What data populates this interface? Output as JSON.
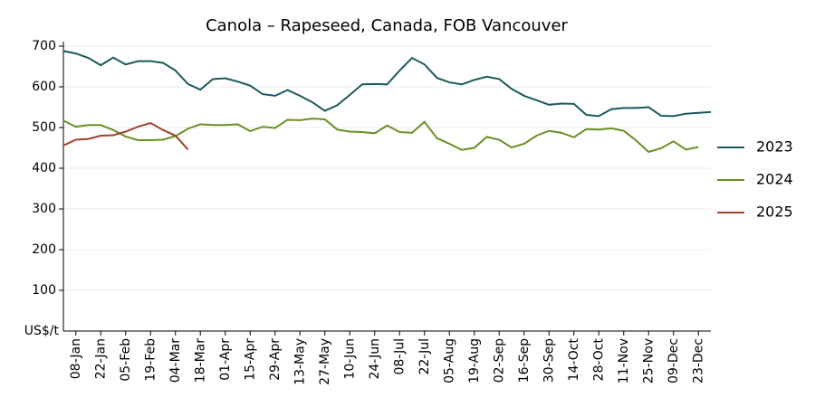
{
  "chart_data": {
    "type": "line",
    "title": "Canola – Rapeseed, Canada, FOB Vancouver",
    "ylabel": "US$/t",
    "categories": [
      null,
      "08-Jan",
      null,
      "22-Jan",
      null,
      "05-Feb",
      null,
      "19-Feb",
      null,
      "04-Mar",
      null,
      "18-Mar",
      null,
      "01-Apr",
      null,
      "15-Apr",
      null,
      "29-Apr",
      null,
      "13-May",
      null,
      "27-May",
      null,
      "10-Jun",
      null,
      "24-Jun",
      null,
      "08-Jul",
      null,
      "22-Jul",
      null,
      "05-Aug",
      null,
      "19-Aug",
      null,
      "02-Sep",
      null,
      "16-Sep",
      null,
      "30-Sep",
      null,
      "14-Oct",
      null,
      "28-Oct",
      null,
      "11-Nov",
      null,
      "25-Nov",
      null,
      "09-Dec",
      null,
      "23-Dec",
      null
    ],
    "series": [
      {
        "name": "2023",
        "color": "#1b5a5e",
        "values": [
          688,
          682,
          671,
          653,
          672,
          655,
          663,
          663,
          659,
          640,
          607,
          593,
          619,
          621,
          613,
          603,
          582,
          578,
          592,
          578,
          562,
          541,
          555,
          580,
          606,
          607,
          606,
          640,
          671,
          655,
          622,
          611,
          606,
          617,
          625,
          619,
          595,
          578,
          567,
          556,
          559,
          558,
          531,
          528,
          545,
          548,
          548,
          550,
          529,
          528,
          534,
          536,
          538
        ]
      },
      {
        "name": "2024",
        "color": "#6b8e23",
        "values": [
          517,
          502,
          506,
          506,
          494,
          478,
          469,
          469,
          470,
          479,
          497,
          508,
          506,
          506,
          508,
          491,
          502,
          499,
          519,
          518,
          522,
          520,
          495,
          490,
          489,
          486,
          505,
          489,
          487,
          514,
          474,
          460,
          445,
          450,
          477,
          470,
          451,
          460,
          480,
          492,
          487,
          476,
          496,
          495,
          498,
          492,
          468,
          440,
          449,
          466,
          446,
          452,
          null
        ]
      },
      {
        "name": "2025",
        "color": "#a0412d",
        "values": [
          456,
          470,
          472,
          480,
          481,
          490,
          502,
          511,
          494,
          480,
          446,
          null,
          null,
          null,
          null,
          null,
          null,
          null,
          null,
          null,
          null,
          null,
          null,
          null,
          null,
          null,
          null,
          null,
          null,
          null,
          null,
          null,
          null,
          null,
          null,
          null,
          null,
          null,
          null,
          null,
          null,
          null,
          null,
          null,
          null,
          null,
          null,
          null,
          null,
          null,
          null,
          null,
          null
        ]
      }
    ],
    "ylim": [
      0,
      700
    ],
    "yticks": [
      100,
      200,
      300,
      400,
      500,
      600,
      700
    ],
    "grid": true,
    "legend": "right"
  }
}
